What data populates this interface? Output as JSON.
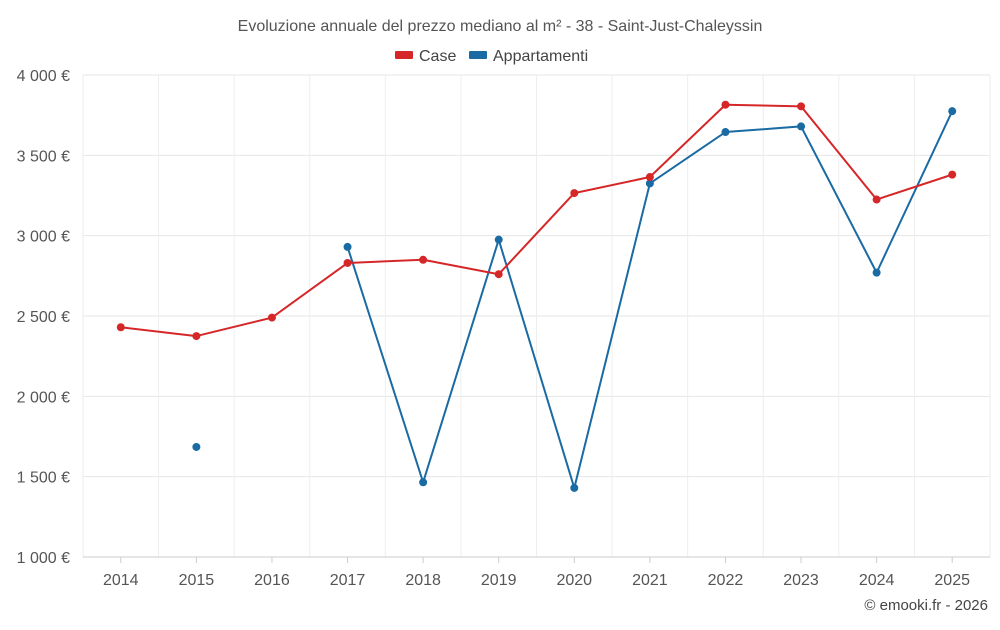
{
  "chart_data": {
    "type": "line",
    "title": "Evoluzione annuale del prezzo mediano al m² - 38 - Saint-Just-Chaleyssin",
    "categories": [
      "2014",
      "2015",
      "2016",
      "2017",
      "2018",
      "2019",
      "2020",
      "2021",
      "2022",
      "2023",
      "2024",
      "2025"
    ],
    "y_ticks": [
      1000,
      1500,
      2000,
      2500,
      3000,
      3500,
      4000
    ],
    "y_tick_labels": [
      "1 000 €",
      "1 500 €",
      "2 000 €",
      "2 500 €",
      "3 000 €",
      "3 500 €",
      "4 000 €"
    ],
    "ylim": [
      1000,
      4000
    ],
    "xlabel": "",
    "ylabel": "",
    "grid": true,
    "legend_position": "top-center",
    "series": [
      {
        "name": "Case",
        "color": "#d62728",
        "values": [
          2430,
          2375,
          2490,
          2830,
          2850,
          2760,
          3265,
          3365,
          3815,
          3805,
          3225,
          3380
        ]
      },
      {
        "name": "Appartamenti",
        "color": "#1a6aa3",
        "values": [
          null,
          1685,
          null,
          2930,
          1465,
          2975,
          1430,
          3325,
          3645,
          3680,
          2770,
          3775
        ]
      }
    ],
    "credit": "© emooki.fr - 2026"
  }
}
